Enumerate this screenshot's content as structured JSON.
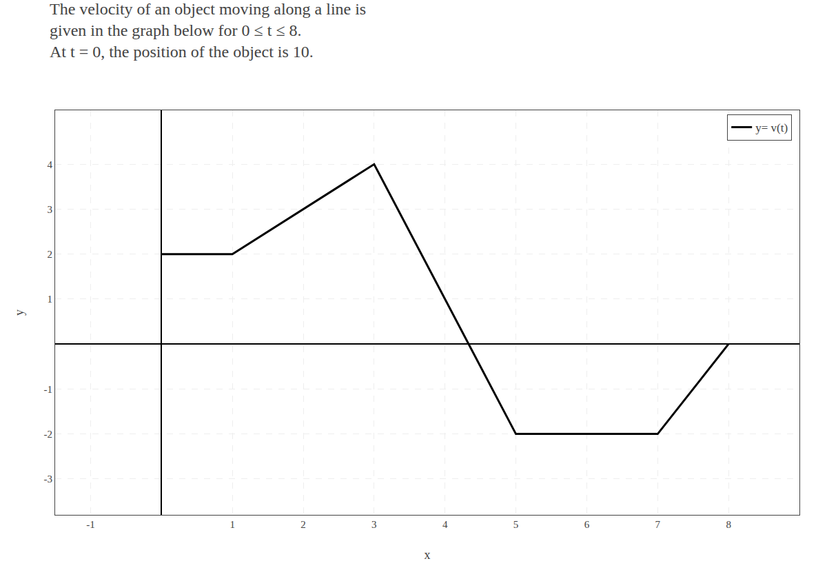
{
  "chart_data": {
    "type": "line",
    "title": "The velocity of an object moving along a line is\ngiven in the graph below for 0 ≤ t ≤ 8.\nAt t = 0, the position of the object is 10.",
    "x": [
      0,
      1,
      3,
      5,
      7,
      8
    ],
    "series": [
      {
        "name": "y= v(t)",
        "color": "#000000",
        "values": [
          2,
          2,
          4,
          -2,
          -2,
          0
        ]
      }
    ],
    "xlabel": "x",
    "ylabel": "y",
    "xlim": [
      -1.5,
      9.0
    ],
    "ylim": [
      -3.8,
      5.2
    ],
    "xticks": [
      -1,
      1,
      2,
      3,
      4,
      5,
      6,
      7,
      8
    ],
    "yticks": [
      -3,
      -2,
      -1,
      1,
      2,
      3,
      4
    ],
    "grid": true,
    "legend": "upper right"
  }
}
